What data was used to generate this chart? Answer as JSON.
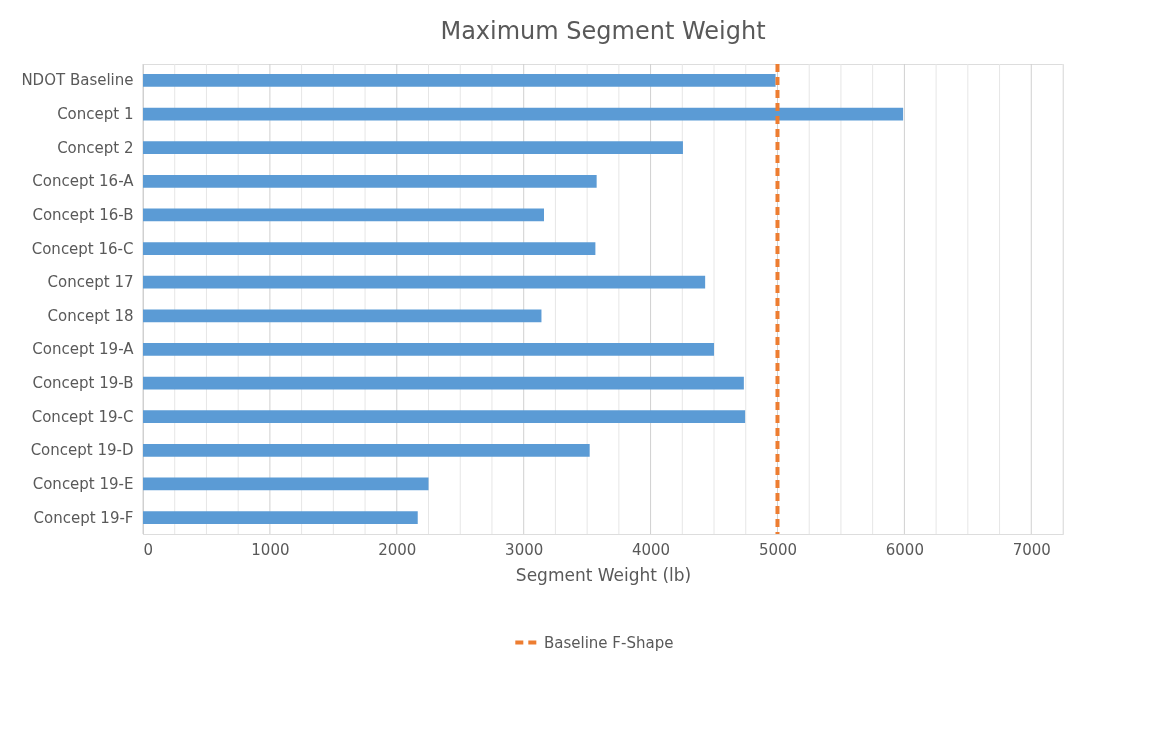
{
  "chart_data": {
    "type": "bar",
    "orientation": "horizontal",
    "title": "Maximum Segment Weight",
    "xlabel": "Segment Weight (lb)",
    "categories": [
      "NDOT Baseline",
      "Concept 1",
      "Concept 2",
      "Concept 16-A",
      "Concept 16-B",
      "Concept 16-C",
      "Concept 17",
      "Concept 18",
      "Concept 19-A",
      "Concept 19-B",
      "Concept 19-C",
      "Concept 19-D",
      "Concept 19-E",
      "Concept 19-F"
    ],
    "series": [
      {
        "color": "#5b9bd5",
        "values": [
          4985,
          5990,
          4255,
          3575,
          3160,
          3565,
          4430,
          3140,
          4500,
          4735,
          4745,
          3520,
          2250,
          2165
        ]
      }
    ],
    "xlim": [
      0,
      7250
    ],
    "xticks": [
      0,
      {
        "value": 250,
        "label": null
      },
      {
        "value": 500,
        "label": null
      },
      {
        "value": 750,
        "label": null
      },
      1000,
      {
        "value": 1250,
        "label": null
      },
      {
        "value": 1500,
        "label": null
      },
      {
        "value": 1750,
        "label": null
      },
      2000,
      {
        "value": 2250,
        "label": null
      },
      {
        "value": 2500,
        "label": null
      },
      {
        "value": 2750,
        "label": null
      },
      3000,
      {
        "value": 3250,
        "label": null
      },
      {
        "value": 3500,
        "label": null
      },
      {
        "value": 3750,
        "label": null
      },
      4000,
      {
        "value": 4250,
        "label": null
      },
      {
        "value": 4500,
        "label": null
      },
      {
        "value": 4750,
        "label": null
      },
      5000,
      {
        "value": 5250,
        "label": null
      },
      {
        "value": 5500,
        "label": null
      },
      {
        "value": 5750,
        "label": null
      },
      6000,
      {
        "value": 6250,
        "label": null
      },
      {
        "value": 6500,
        "label": null
      },
      {
        "value": 6750,
        "label": null
      },
      7000,
      {
        "value": 7250,
        "label": null
      }
    ],
    "ref_lines": [
      {
        "axis": "x",
        "value": 5000,
        "label": "Baseline F-Shape",
        "color": "#ed7d31",
        "line_style": "dashed"
      }
    ],
    "grid": "x",
    "legend": "bottom"
  }
}
